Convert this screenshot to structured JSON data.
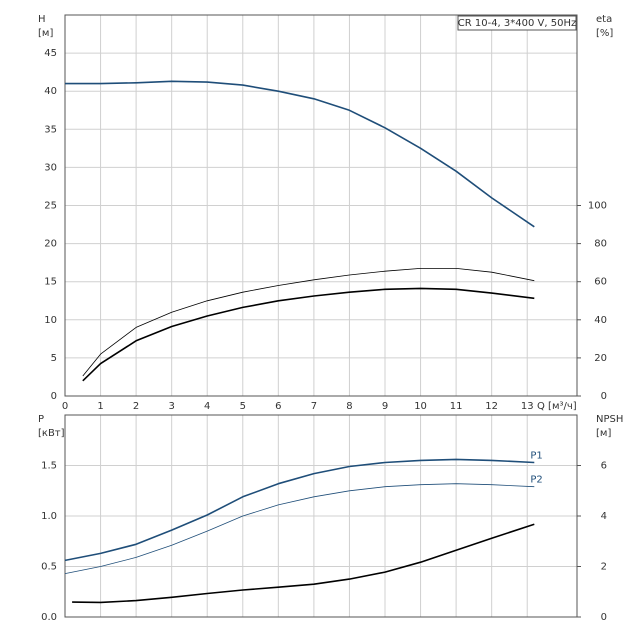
{
  "chart_data": [
    {
      "type": "line",
      "annotation": "CR 10-4, 3*400 V, 50Hz",
      "ylabel": "H",
      "yunit": "[м]",
      "y2label": "eta",
      "y2unit": "[%]",
      "xlabel": "Q [м³/ч]",
      "xlim": [
        0,
        14.4
      ],
      "xticks": [
        0,
        1,
        2,
        3,
        4,
        5,
        6,
        7,
        8,
        9,
        10,
        11,
        12,
        13
      ],
      "xtick_labels": true,
      "ylim": [
        0,
        50
      ],
      "yticks": [
        0,
        5,
        10,
        15,
        20,
        25,
        30,
        35,
        40,
        45
      ],
      "y2lim": [
        0,
        200
      ],
      "y2ticks": [
        0,
        20,
        40,
        60,
        80,
        100
      ],
      "grid": true,
      "series": [
        {
          "color": "#1f4e79",
          "width": 1.6,
          "x": [
            0,
            1,
            2,
            3,
            4,
            5,
            6,
            7,
            8,
            9,
            10,
            11,
            12,
            13.2
          ],
          "values": [
            41,
            41,
            41.1,
            41.3,
            41.2,
            40.8,
            40,
            39,
            37.5,
            35.2,
            32.5,
            29.5,
            26,
            22.2
          ]
        },
        {
          "color": "#000000",
          "width": 0.8,
          "axis": "y2",
          "x": [
            0.5,
            1,
            2,
            3,
            4,
            5,
            6,
            7,
            8,
            9,
            10,
            11,
            12,
            13.2
          ],
          "values": [
            10.5,
            22,
            36,
            44,
            50,
            54.5,
            58,
            61,
            63.5,
            65.5,
            67,
            67,
            65,
            60.5
          ]
        },
        {
          "color": "#000000",
          "width": 1.6,
          "axis": "y2",
          "x": [
            0.5,
            1,
            2,
            3,
            4,
            5,
            6,
            7,
            8,
            9,
            10,
            11,
            12,
            13.2
          ],
          "values": [
            8,
            17,
            29,
            36.5,
            42,
            46.5,
            50,
            52.5,
            54.5,
            56,
            56.5,
            56,
            54,
            51.3
          ]
        }
      ]
    },
    {
      "type": "line",
      "ylabel": "P",
      "yunit": "[кВт]",
      "y2label": "NPSH",
      "y2unit": "[м]",
      "xlim": [
        0,
        14.4
      ],
      "xticks": [
        0,
        1,
        2,
        3,
        4,
        5,
        6,
        7,
        8,
        9,
        10,
        11,
        12,
        13
      ],
      "xtick_labels": false,
      "ylim": [
        0,
        2.0
      ],
      "yticks": [
        {
          "value": 0,
          "label": "0.0"
        },
        0.5,
        {
          "value": 1,
          "label": "1.0"
        },
        1.5
      ],
      "y2lim": [
        0,
        8
      ],
      "y2ticks": [
        0,
        2,
        4,
        6
      ],
      "grid": true,
      "series": [
        {
          "name": "P1",
          "color": "#1f4e79",
          "width": 1.6,
          "x": [
            0,
            1,
            2,
            3,
            4,
            5,
            6,
            7,
            8,
            9,
            10,
            11,
            12,
            13.2
          ],
          "values": [
            0.56,
            0.63,
            0.72,
            0.86,
            1.01,
            1.19,
            1.32,
            1.42,
            1.49,
            1.53,
            1.55,
            1.56,
            1.55,
            1.53
          ]
        },
        {
          "name": "P2",
          "color": "#1f4e79",
          "width": 0.8,
          "x": [
            0,
            1,
            2,
            3,
            4,
            5,
            6,
            7,
            8,
            9,
            10,
            11,
            12,
            13.2
          ],
          "values": [
            0.43,
            0.5,
            0.59,
            0.71,
            0.85,
            1.0,
            1.11,
            1.19,
            1.25,
            1.29,
            1.31,
            1.32,
            1.31,
            1.29
          ]
        },
        {
          "color": "#000000",
          "width": 1.6,
          "axis": "y2",
          "x": [
            0.2,
            1,
            2,
            3,
            4,
            5,
            6,
            7,
            8,
            9,
            10,
            11,
            12,
            13.2
          ],
          "values": [
            0.59,
            0.58,
            0.65,
            0.78,
            0.93,
            1.07,
            1.18,
            1.3,
            1.5,
            1.78,
            2.17,
            2.64,
            3.12,
            3.67
          ]
        }
      ]
    }
  ]
}
